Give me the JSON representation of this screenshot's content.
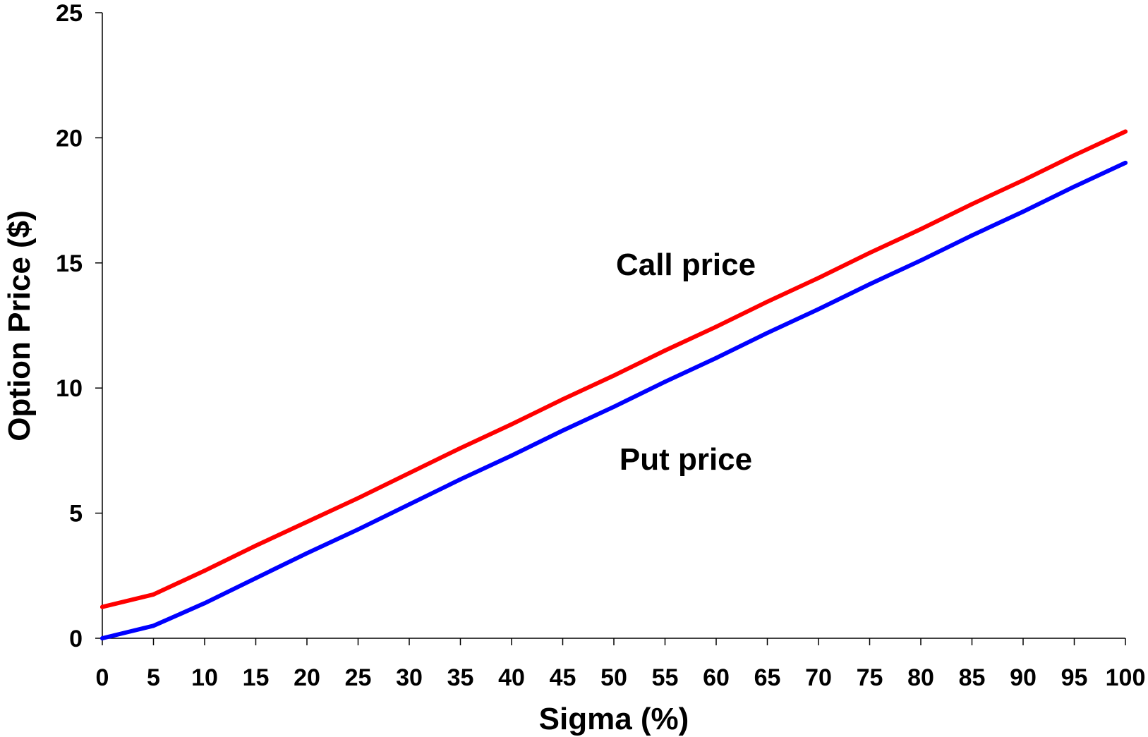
{
  "chart_data": {
    "type": "line",
    "title": "",
    "xlabel": "Sigma (%)",
    "ylabel": "Option Price ($)",
    "xlim": [
      0,
      100
    ],
    "ylim": [
      0,
      25
    ],
    "x_ticks": [
      0,
      5,
      10,
      15,
      20,
      25,
      30,
      35,
      40,
      45,
      50,
      55,
      60,
      65,
      70,
      75,
      80,
      85,
      90,
      95,
      100
    ],
    "y_ticks": [
      0,
      5,
      10,
      15,
      20,
      25
    ],
    "grid": false,
    "legend": "none",
    "x": [
      0,
      5,
      10,
      15,
      20,
      25,
      30,
      35,
      40,
      45,
      50,
      55,
      60,
      65,
      70,
      75,
      80,
      85,
      90,
      95,
      100
    ],
    "series": [
      {
        "name": "Call price",
        "color": "#ff0000",
        "values": [
          1.25,
          1.75,
          2.7,
          3.7,
          4.65,
          5.6,
          6.6,
          7.6,
          8.55,
          9.55,
          10.5,
          11.5,
          12.45,
          13.45,
          14.4,
          15.4,
          16.35,
          17.35,
          18.3,
          19.3,
          20.25
        ]
      },
      {
        "name": "Put price",
        "color": "#0000ff",
        "values": [
          0.0,
          0.5,
          1.4,
          2.4,
          3.4,
          4.35,
          5.35,
          6.35,
          7.3,
          8.3,
          9.25,
          10.25,
          11.2,
          12.2,
          13.15,
          14.15,
          15.1,
          16.1,
          17.05,
          18.05,
          19.0
        ]
      }
    ],
    "annotations": [
      "Call price",
      "Put price"
    ]
  }
}
